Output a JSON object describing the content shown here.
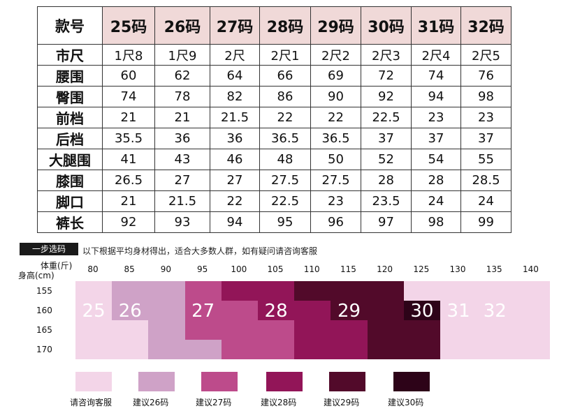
{
  "size_table": {
    "header": "款号",
    "sizes": [
      "25码",
      "26码",
      "27码",
      "28码",
      "29码",
      "30码",
      "31码",
      "32码"
    ],
    "rows": [
      {
        "label": "市尺",
        "values": [
          "1尺8",
          "1尺9",
          "2尺",
          "2尺1",
          "2尺2",
          "2尺3",
          "2尺4",
          "2尺5"
        ]
      },
      {
        "label": "腰围",
        "values": [
          "60",
          "62",
          "64",
          "66",
          "69",
          "72",
          "74",
          "76"
        ]
      },
      {
        "label": "臀围",
        "values": [
          "74",
          "78",
          "82",
          "86",
          "90",
          "92",
          "94",
          "98"
        ]
      },
      {
        "label": "前档",
        "values": [
          "21",
          "21",
          "21.5",
          "22",
          "22",
          "22.5",
          "23",
          "23"
        ]
      },
      {
        "label": "后档",
        "values": [
          "35.5",
          "36",
          "36",
          "36.5",
          "36.5",
          "37",
          "37",
          "37"
        ]
      },
      {
        "label": "大腿围",
        "values": [
          "41",
          "43",
          "46",
          "48",
          "50",
          "52",
          "54",
          "55"
        ]
      },
      {
        "label": "膝围",
        "values": [
          "26.5",
          "27",
          "27",
          "27.5",
          "27.5",
          "28",
          "28",
          "28.5"
        ]
      },
      {
        "label": "脚口",
        "values": [
          "21",
          "21.5",
          "22",
          "22.5",
          "23",
          "23.5",
          "24",
          "24"
        ]
      },
      {
        "label": "裤长",
        "values": [
          "92",
          "93",
          "94",
          "95",
          "96",
          "97",
          "98",
          "99"
        ]
      }
    ]
  },
  "recommendation": {
    "step_label": "一步选码",
    "intro": "以下根据平均身材得出，适合大多数人群，如有疑问请咨询客服",
    "weight_label": "体重(斤)",
    "height_label": "身高(cm)",
    "weights": [
      "80",
      "85",
      "90",
      "95",
      "100",
      "105",
      "110",
      "115",
      "120",
      "125",
      "130",
      "135",
      "140"
    ],
    "heights": [
      "155",
      "160",
      "165",
      "170"
    ],
    "colors": {
      "0": "#f3d5e8",
      "26": "#cfa2c7",
      "27": "#bd4b8b",
      "28": "#921558",
      "29": "#520a2a",
      "30": "#2d0318"
    },
    "grid": [
      [
        0,
        26,
        26,
        27,
        28,
        28,
        29,
        29,
        29,
        0,
        0,
        0,
        0
      ],
      [
        0,
        26,
        26,
        27,
        27,
        28,
        28,
        29,
        29,
        30,
        0,
        0,
        0
      ],
      [
        0,
        0,
        26,
        27,
        27,
        27,
        28,
        28,
        29,
        29,
        0,
        0,
        0
      ],
      [
        0,
        0,
        26,
        26,
        27,
        27,
        28,
        28,
        29,
        29,
        0,
        0,
        0
      ]
    ],
    "size_labels": [
      "25",
      "26",
      "27",
      "28",
      "29",
      "30",
      "31",
      "32"
    ],
    "legend": [
      {
        "label": "请咨询客服",
        "level": "0"
      },
      {
        "label": "建议26码",
        "level": "26"
      },
      {
        "label": "建议27码",
        "level": "27"
      },
      {
        "label": "建议28码",
        "level": "28"
      },
      {
        "label": "建议29码",
        "level": "29"
      },
      {
        "label": "建议30码",
        "level": "30"
      }
    ]
  }
}
